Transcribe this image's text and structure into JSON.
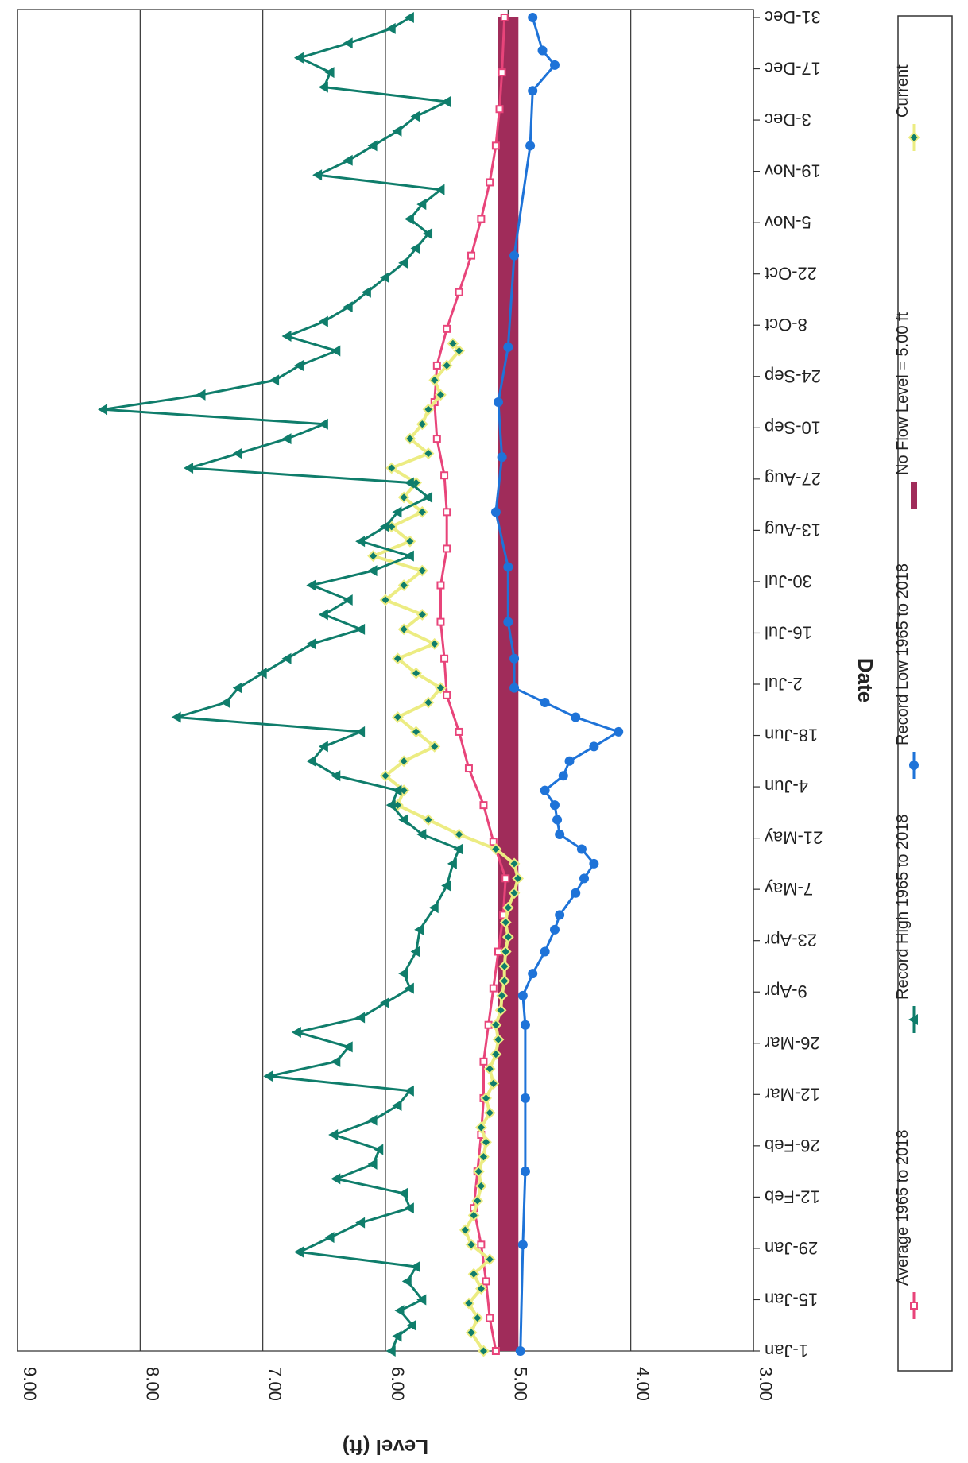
{
  "chart_data": {
    "type": "line",
    "orientation": "rotated-90-clockwise",
    "xlabel": "Date",
    "ylabel": "Level (ft)",
    "ylim": [
      3.0,
      9.0
    ],
    "y_ticks": [
      "3.00",
      "4.00",
      "5.00",
      "6.00",
      "7.00",
      "8.00",
      "9.00"
    ],
    "x_ticks": [
      {
        "day": 1,
        "label": "1-Jan"
      },
      {
        "day": 15,
        "label": "15-Jan"
      },
      {
        "day": 29,
        "label": "29-Jan"
      },
      {
        "day": 43,
        "label": "12-Feb"
      },
      {
        "day": 57,
        "label": "26-Feb"
      },
      {
        "day": 71,
        "label": "12-Mar"
      },
      {
        "day": 85,
        "label": "26-Mar"
      },
      {
        "day": 99,
        "label": "9-Apr"
      },
      {
        "day": 113,
        "label": "23-Apr"
      },
      {
        "day": 127,
        "label": "7-May"
      },
      {
        "day": 141,
        "label": "21-May"
      },
      {
        "day": 155,
        "label": "4-Jun"
      },
      {
        "day": 169,
        "label": "18-Jun"
      },
      {
        "day": 183,
        "label": "2-Jul"
      },
      {
        "day": 197,
        "label": "16-Jul"
      },
      {
        "day": 211,
        "label": "30-Jul"
      },
      {
        "day": 225,
        "label": "13-Aug"
      },
      {
        "day": 239,
        "label": "27-Aug"
      },
      {
        "day": 253,
        "label": "10-Sep"
      },
      {
        "day": 267,
        "label": "24-Sep"
      },
      {
        "day": 281,
        "label": "8-Oct"
      },
      {
        "day": 295,
        "label": "22-Oct"
      },
      {
        "day": 309,
        "label": "5-Nov"
      },
      {
        "day": 323,
        "label": "19-Nov"
      },
      {
        "day": 337,
        "label": "3-Dec"
      },
      {
        "day": 351,
        "label": "17-Dec"
      },
      {
        "day": 365,
        "label": "31-Dec"
      }
    ],
    "xlim": [
      1,
      365
    ],
    "grid": "horizontal-major",
    "legend_position": "bottom",
    "series": [
      {
        "name": "Average 1965 to 2018",
        "color": "#e8447a",
        "marker": "square",
        "points": [
          [
            1,
            5.1
          ],
          [
            10,
            5.15
          ],
          [
            20,
            5.18
          ],
          [
            30,
            5.22
          ],
          [
            40,
            5.28
          ],
          [
            50,
            5.25
          ],
          [
            60,
            5.22
          ],
          [
            70,
            5.2
          ],
          [
            80,
            5.2
          ],
          [
            90,
            5.16
          ],
          [
            100,
            5.12
          ],
          [
            110,
            5.08
          ],
          [
            120,
            5.04
          ],
          [
            130,
            5.02
          ],
          [
            140,
            5.12
          ],
          [
            150,
            5.2
          ],
          [
            160,
            5.32
          ],
          [
            170,
            5.4
          ],
          [
            180,
            5.5
          ],
          [
            190,
            5.52
          ],
          [
            200,
            5.55
          ],
          [
            210,
            5.55
          ],
          [
            220,
            5.5
          ],
          [
            230,
            5.5
          ],
          [
            240,
            5.52
          ],
          [
            250,
            5.58
          ],
          [
            260,
            5.6
          ],
          [
            270,
            5.58
          ],
          [
            280,
            5.5
          ],
          [
            290,
            5.4
          ],
          [
            300,
            5.3
          ],
          [
            310,
            5.22
          ],
          [
            320,
            5.15
          ],
          [
            330,
            5.1
          ],
          [
            340,
            5.07
          ],
          [
            350,
            5.05
          ],
          [
            365,
            5.03
          ]
        ]
      },
      {
        "name": "Record High 1965 to 2018",
        "color": "#0f7d6b",
        "marker": "triangle",
        "points": [
          [
            1,
            5.95
          ],
          [
            5,
            5.9
          ],
          [
            8,
            5.78
          ],
          [
            12,
            5.88
          ],
          [
            15,
            5.7
          ],
          [
            20,
            5.82
          ],
          [
            24,
            5.75
          ],
          [
            28,
            6.7
          ],
          [
            32,
            6.45
          ],
          [
            36,
            6.2
          ],
          [
            40,
            5.8
          ],
          [
            44,
            5.85
          ],
          [
            48,
            6.4
          ],
          [
            52,
            6.1
          ],
          [
            56,
            6.05
          ],
          [
            60,
            6.42
          ],
          [
            64,
            6.1
          ],
          [
            68,
            5.9
          ],
          [
            72,
            5.8
          ],
          [
            76,
            6.95
          ],
          [
            80,
            6.4
          ],
          [
            84,
            6.3
          ],
          [
            88,
            6.72
          ],
          [
            92,
            6.2
          ],
          [
            96,
            6.0
          ],
          [
            100,
            5.8
          ],
          [
            104,
            5.85
          ],
          [
            110,
            5.75
          ],
          [
            116,
            5.72
          ],
          [
            122,
            5.6
          ],
          [
            128,
            5.5
          ],
          [
            134,
            5.45
          ],
          [
            138,
            5.4
          ],
          [
            142,
            5.7
          ],
          [
            146,
            5.85
          ],
          [
            150,
            5.95
          ],
          [
            154,
            5.9
          ],
          [
            158,
            6.4
          ],
          [
            162,
            6.6
          ],
          [
            166,
            6.5
          ],
          [
            170,
            6.2
          ],
          [
            174,
            7.7
          ],
          [
            178,
            7.3
          ],
          [
            182,
            7.2
          ],
          [
            186,
            7.0
          ],
          [
            190,
            6.8
          ],
          [
            194,
            6.6
          ],
          [
            198,
            6.2
          ],
          [
            202,
            6.5
          ],
          [
            206,
            6.3
          ],
          [
            210,
            6.6
          ],
          [
            214,
            6.1
          ],
          [
            218,
            5.8
          ],
          [
            222,
            6.2
          ],
          [
            226,
            6.0
          ],
          [
            230,
            5.9
          ],
          [
            234,
            5.65
          ],
          [
            238,
            5.8
          ],
          [
            242,
            7.6
          ],
          [
            246,
            7.2
          ],
          [
            250,
            6.8
          ],
          [
            254,
            6.5
          ],
          [
            258,
            8.3
          ],
          [
            262,
            7.5
          ],
          [
            266,
            6.9
          ],
          [
            270,
            6.7
          ],
          [
            274,
            6.4
          ],
          [
            278,
            6.8
          ],
          [
            282,
            6.5
          ],
          [
            286,
            6.3
          ],
          [
            290,
            6.15
          ],
          [
            294,
            6.0
          ],
          [
            298,
            5.85
          ],
          [
            302,
            5.75
          ],
          [
            306,
            5.65
          ],
          [
            310,
            5.8
          ],
          [
            314,
            5.7
          ],
          [
            318,
            5.55
          ],
          [
            322,
            6.55
          ],
          [
            326,
            6.3
          ],
          [
            330,
            6.1
          ],
          [
            334,
            5.9
          ],
          [
            338,
            5.75
          ],
          [
            342,
            5.5
          ],
          [
            346,
            6.5
          ],
          [
            350,
            6.45
          ],
          [
            354,
            6.7
          ],
          [
            358,
            6.3
          ],
          [
            362,
            5.95
          ],
          [
            365,
            5.8
          ]
        ]
      },
      {
        "name": "Record Low 1965 to 2018",
        "color": "#1e73d8",
        "marker": "circle",
        "points": [
          [
            1,
            4.9
          ],
          [
            30,
            4.88
          ],
          [
            50,
            4.86
          ],
          [
            70,
            4.86
          ],
          [
            90,
            4.86
          ],
          [
            98,
            4.88
          ],
          [
            104,
            4.8
          ],
          [
            110,
            4.7
          ],
          [
            116,
            4.62
          ],
          [
            120,
            4.58
          ],
          [
            126,
            4.45
          ],
          [
            130,
            4.38
          ],
          [
            134,
            4.3
          ],
          [
            138,
            4.4
          ],
          [
            142,
            4.58
          ],
          [
            146,
            4.6
          ],
          [
            150,
            4.62
          ],
          [
            154,
            4.7
          ],
          [
            158,
            4.55
          ],
          [
            162,
            4.5
          ],
          [
            166,
            4.3
          ],
          [
            170,
            4.1
          ],
          [
            174,
            4.45
          ],
          [
            178,
            4.7
          ],
          [
            182,
            4.95
          ],
          [
            190,
            4.95
          ],
          [
            200,
            5.0
          ],
          [
            215,
            5.0
          ],
          [
            230,
            5.1
          ],
          [
            245,
            5.05
          ],
          [
            260,
            5.08
          ],
          [
            275,
            5.0
          ],
          [
            300,
            4.95
          ],
          [
            330,
            4.82
          ],
          [
            345,
            4.8
          ],
          [
            352,
            4.62
          ],
          [
            356,
            4.72
          ],
          [
            365,
            4.8
          ]
        ]
      },
      {
        "name": "No Flow Level = 5.00 ft",
        "color": "#a02c5a",
        "marker": "none",
        "points": [
          [
            1,
            5.0
          ],
          [
            365,
            5.0
          ]
        ]
      },
      {
        "name": "Current",
        "color": "#ecec82",
        "marker": "diamond",
        "points": [
          [
            1,
            5.2
          ],
          [
            6,
            5.3
          ],
          [
            10,
            5.25
          ],
          [
            14,
            5.32
          ],
          [
            18,
            5.22
          ],
          [
            22,
            5.28
          ],
          [
            26,
            5.15
          ],
          [
            30,
            5.3
          ],
          [
            34,
            5.35
          ],
          [
            38,
            5.28
          ],
          [
            42,
            5.25
          ],
          [
            46,
            5.22
          ],
          [
            50,
            5.24
          ],
          [
            54,
            5.2
          ],
          [
            58,
            5.18
          ],
          [
            62,
            5.22
          ],
          [
            66,
            5.15
          ],
          [
            70,
            5.18
          ],
          [
            74,
            5.12
          ],
          [
            78,
            5.15
          ],
          [
            82,
            5.1
          ],
          [
            86,
            5.08
          ],
          [
            90,
            5.1
          ],
          [
            94,
            5.06
          ],
          [
            98,
            5.05
          ],
          [
            102,
            5.03
          ],
          [
            106,
            5.03
          ],
          [
            110,
            5.02
          ],
          [
            114,
            5.0
          ],
          [
            118,
            5.02
          ],
          [
            122,
            5.0
          ],
          [
            126,
            4.95
          ],
          [
            130,
            4.92
          ],
          [
            134,
            4.95
          ],
          [
            138,
            5.1
          ],
          [
            142,
            5.4
          ],
          [
            146,
            5.65
          ],
          [
            150,
            5.9
          ],
          [
            154,
            5.85
          ],
          [
            158,
            6.0
          ],
          [
            162,
            5.85
          ],
          [
            166,
            5.6
          ],
          [
            170,
            5.75
          ],
          [
            174,
            5.9
          ],
          [
            178,
            5.65
          ],
          [
            182,
            5.55
          ],
          [
            186,
            5.75
          ],
          [
            190,
            5.9
          ],
          [
            194,
            5.6
          ],
          [
            198,
            5.85
          ],
          [
            202,
            5.7
          ],
          [
            206,
            6.0
          ],
          [
            210,
            5.85
          ],
          [
            214,
            5.7
          ],
          [
            218,
            6.1
          ],
          [
            222,
            5.8
          ],
          [
            226,
            5.95
          ],
          [
            230,
            5.7
          ],
          [
            234,
            5.85
          ],
          [
            238,
            5.75
          ],
          [
            242,
            5.95
          ],
          [
            246,
            5.65
          ],
          [
            250,
            5.8
          ],
          [
            254,
            5.7
          ],
          [
            258,
            5.65
          ],
          [
            262,
            5.55
          ],
          [
            266,
            5.6
          ],
          [
            270,
            5.5
          ],
          [
            274,
            5.4
          ],
          [
            276,
            5.45
          ]
        ]
      }
    ]
  }
}
